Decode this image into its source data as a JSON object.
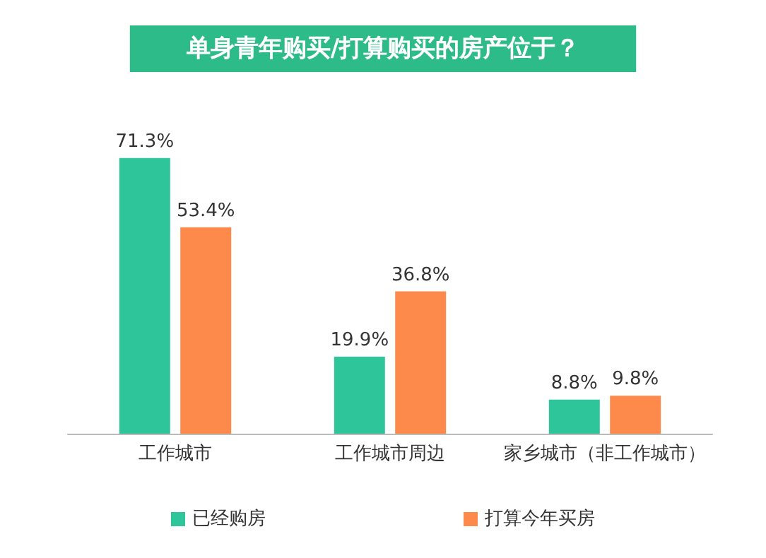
{
  "chart_data": {
    "type": "bar",
    "title": "单身青年购买/打算购买的房产位于？",
    "categories": [
      "工作城市",
      "工作城市周边",
      "家乡城市（非工作城市）"
    ],
    "series": [
      {
        "name": "已经购房",
        "color": "#2fc59b",
        "values": [
          71.3,
          19.9,
          8.8
        ],
        "value_labels": [
          "71.3%",
          "19.9%",
          "8.8%"
        ]
      },
      {
        "name": "打算今年买房",
        "color": "#fd8a4b",
        "values": [
          53.4,
          36.8,
          9.8
        ],
        "value_labels": [
          "53.4%",
          "36.8%",
          "9.8%"
        ]
      }
    ],
    "legend": "bottom",
    "grid": false
  }
}
